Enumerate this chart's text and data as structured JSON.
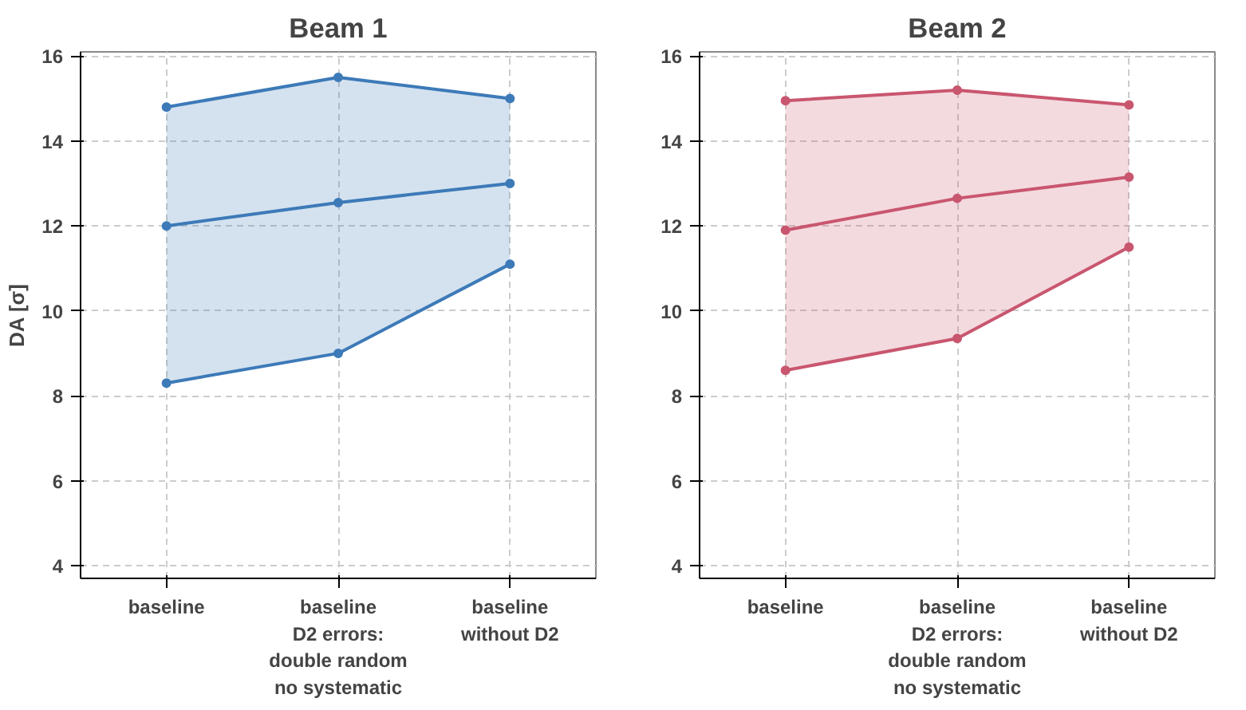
{
  "chart_data": [
    {
      "type": "line",
      "title": "Beam 1",
      "ylabel": "DA [σ]",
      "categories": [
        "baseline",
        "baseline\nD2 errors:\ndouble random\nno systematic",
        "baseline\nwithout D2"
      ],
      "ylim": [
        3.7,
        16.1
      ],
      "yticks": [
        4,
        6,
        8,
        10,
        12,
        14,
        16
      ],
      "grid": true,
      "marker": "circle",
      "series": [
        {
          "color": "#3d7ab8",
          "values": [
            14.8,
            15.5,
            15.0
          ]
        },
        {
          "color": "#3d7ab8",
          "values": [
            12.0,
            12.55,
            13.0
          ],
          "lower": [
            8.3,
            9.0,
            11.1
          ],
          "upper": [
            14.8,
            15.5,
            15.0
          ]
        },
        {
          "color": "#3d7ab8",
          "values": [
            8.3,
            9.0,
            11.1
          ]
        }
      ]
    },
    {
      "type": "line",
      "title": "Beam 2",
      "categories": [
        "baseline",
        "baseline\nD2 errors:\ndouble random\nno systematic",
        "baseline\nwithout D2"
      ],
      "ylim": [
        3.7,
        16.1
      ],
      "yticks": [
        4,
        6,
        8,
        10,
        12,
        14,
        16
      ],
      "grid": true,
      "marker": "circle",
      "series": [
        {
          "color": "#c9566f",
          "values": [
            14.95,
            15.2,
            14.85
          ]
        },
        {
          "color": "#c9566f",
          "values": [
            11.9,
            12.65,
            13.15
          ],
          "lower": [
            8.6,
            9.35,
            11.5
          ],
          "upper": [
            14.95,
            15.2,
            14.85
          ]
        },
        {
          "color": "#c9566f",
          "values": [
            8.6,
            9.35,
            11.5
          ]
        }
      ]
    }
  ]
}
